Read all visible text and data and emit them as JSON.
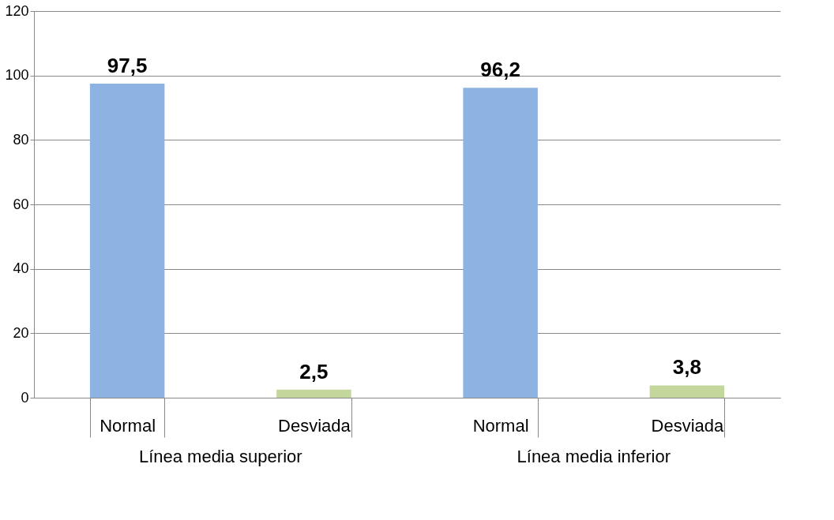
{
  "chart_data": {
    "type": "bar",
    "categories": [
      "Normal",
      "Desviada",
      "Normal",
      "Desviada"
    ],
    "values": [
      97.5,
      2.5,
      96.2,
      3.8
    ],
    "colors": [
      "#8db3e2",
      "#c3d69b",
      "#8db3e2",
      "#c3d69b"
    ],
    "value_labels": [
      "97,5",
      "2,5",
      "96,2",
      "3,8"
    ],
    "annotations": [
      "Línea media superior",
      "Línea media inferior"
    ],
    "ylim": [
      0,
      120
    ],
    "yticks": [
      0,
      20,
      40,
      60,
      80,
      100,
      120
    ],
    "grid": "y",
    "legend": false
  }
}
